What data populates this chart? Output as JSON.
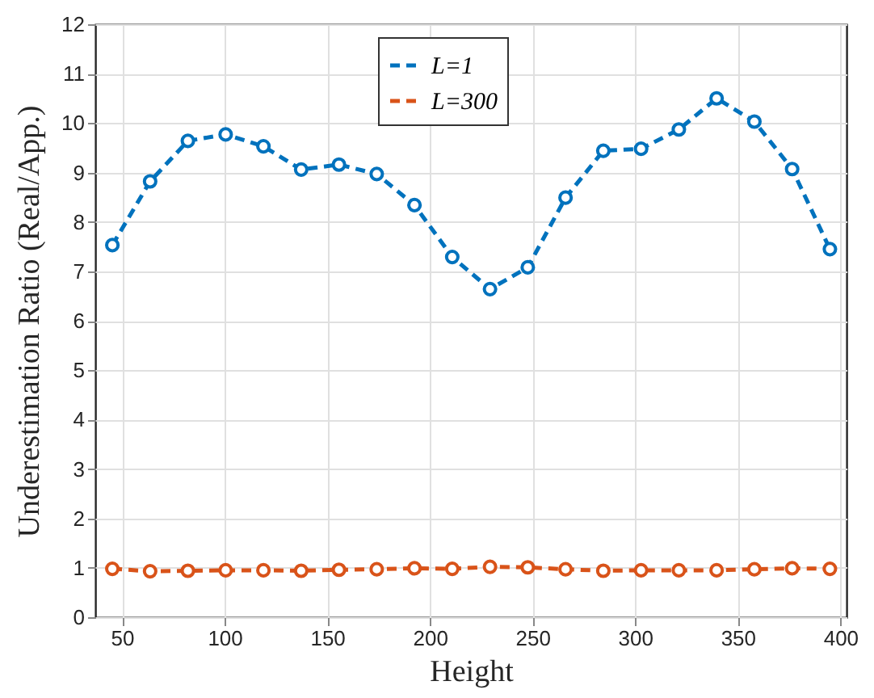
{
  "chart_data": {
    "type": "line",
    "xlabel": "Height",
    "ylabel": "Underestimation Ratio (Real/App.)",
    "x": [
      45.3,
      63.7,
      82.1,
      100.5,
      118.9,
      137.3,
      155.7,
      174.1,
      192.5,
      210.9,
      229.3,
      247.7,
      266.1,
      284.5,
      302.9,
      321.3,
      339.7,
      358.1,
      376.5,
      394.9
    ],
    "series": [
      {
        "name": "L=1",
        "color": "#0072bd",
        "values": [
          7.53,
          8.82,
          9.64,
          9.77,
          9.53,
          9.06,
          9.16,
          8.97,
          8.34,
          7.29,
          6.64,
          7.08,
          8.49,
          9.44,
          9.48,
          9.87,
          10.5,
          10.03,
          9.07,
          7.45
        ]
      },
      {
        "name": "L=300",
        "color": "#d95319",
        "values": [
          0.98,
          0.93,
          0.94,
          0.95,
          0.95,
          0.94,
          0.96,
          0.97,
          0.99,
          0.98,
          1.02,
          1.01,
          0.97,
          0.94,
          0.95,
          0.95,
          0.95,
          0.97,
          0.99,
          0.98
        ]
      }
    ],
    "xlim": [
      37,
      403
    ],
    "xticks": [
      50,
      100,
      150,
      200,
      250,
      300,
      350,
      400
    ],
    "ylim": [
      0,
      12
    ],
    "yticks": [
      0,
      1,
      2,
      3,
      4,
      5,
      6,
      7,
      8,
      9,
      10,
      11,
      12
    ],
    "grid": true,
    "legend": "top",
    "marker": "circle",
    "line_style": "dashed"
  }
}
